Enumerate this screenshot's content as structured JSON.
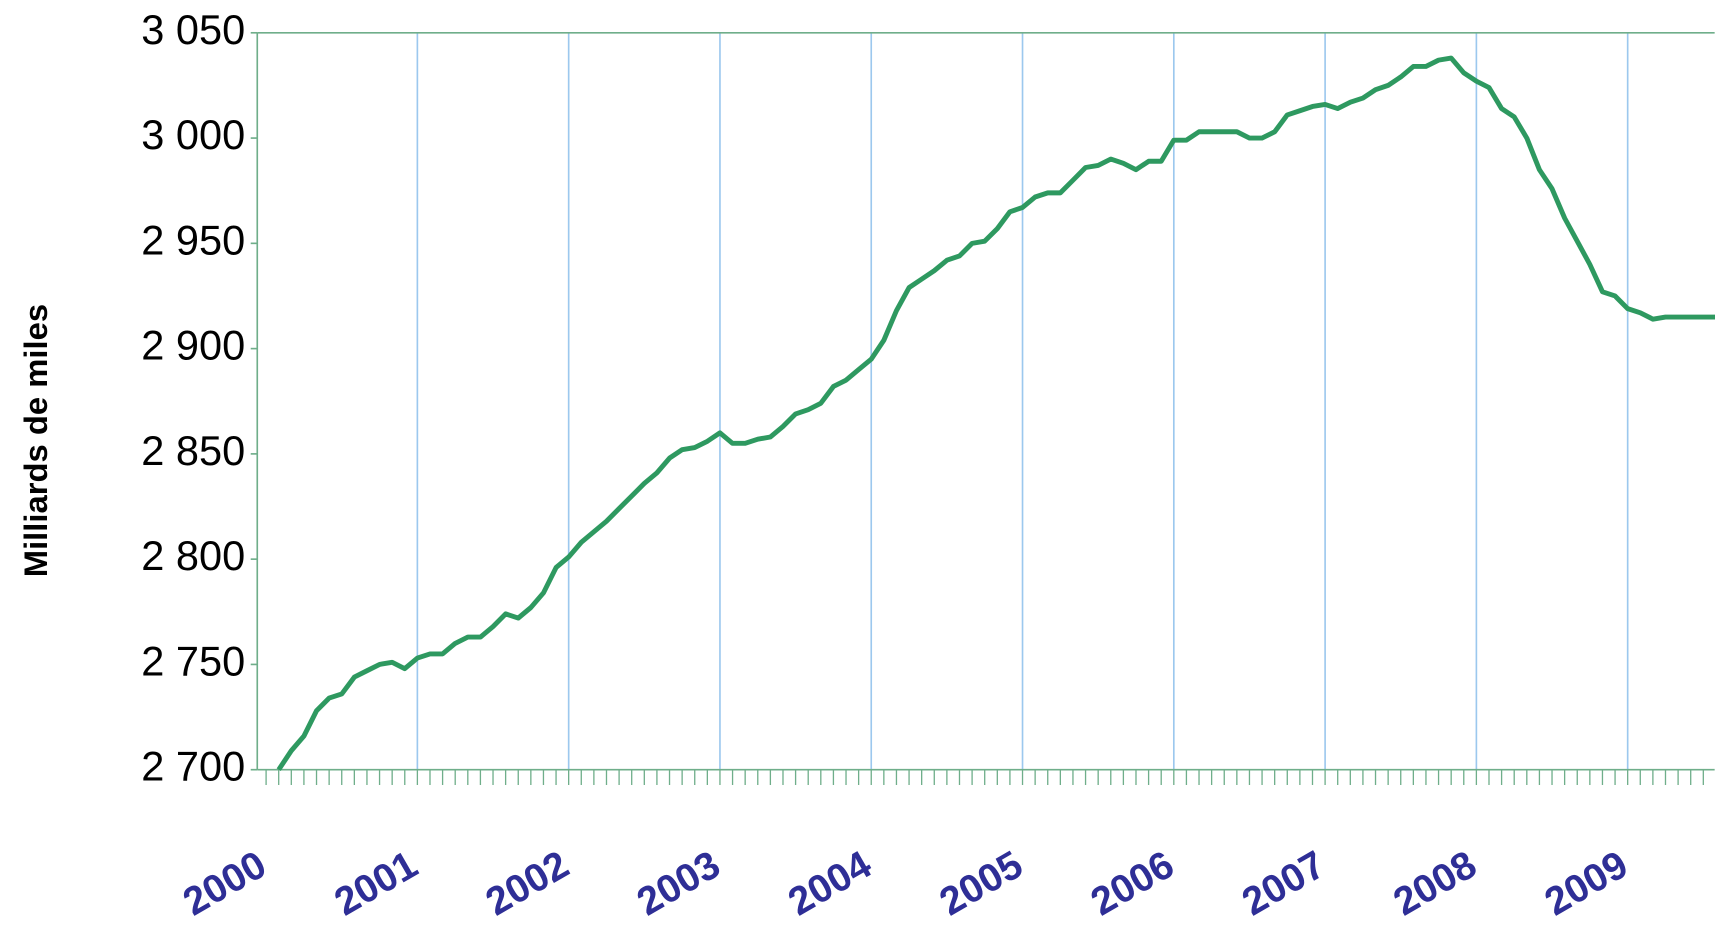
{
  "chart_data": {
    "type": "line",
    "y_label": "Milliards de miles",
    "categories": [
      "2000",
      null,
      null,
      null,
      null,
      null,
      null,
      null,
      null,
      null,
      null,
      null,
      "2001",
      null,
      null,
      null,
      null,
      null,
      null,
      null,
      null,
      null,
      null,
      null,
      "2002",
      null,
      null,
      null,
      null,
      null,
      null,
      null,
      null,
      null,
      null,
      null,
      "2003",
      null,
      null,
      null,
      null,
      null,
      null,
      null,
      null,
      null,
      null,
      null,
      "2004",
      null,
      null,
      null,
      null,
      null,
      null,
      null,
      null,
      null,
      null,
      null,
      "2005",
      null,
      null,
      null,
      null,
      null,
      null,
      null,
      null,
      null,
      null,
      null,
      "2006",
      null,
      null,
      null,
      null,
      null,
      null,
      null,
      null,
      null,
      null,
      null,
      "2007",
      null,
      null,
      null,
      null,
      null,
      null,
      null,
      null,
      null,
      null,
      null,
      "2008",
      null,
      null,
      null,
      null,
      null,
      null,
      null,
      null,
      null,
      null,
      null,
      "2009",
      null,
      null,
      null,
      null,
      null,
      null,
      null
    ],
    "series": [
      {
        "color": "#2e9960",
        "values": [
          null,
          2700,
          2709,
          2716,
          2728,
          2734,
          2736,
          2744,
          2747,
          2750,
          2751,
          2748,
          2753,
          2755,
          2755,
          2760,
          2763,
          2763,
          2768,
          2774,
          2772,
          2777,
          2784,
          2796,
          2801,
          2808,
          2813,
          2818,
          2824,
          2830,
          2836,
          2841,
          2848,
          2852,
          2853,
          2856,
          2860,
          2855,
          2855,
          2857,
          2858,
          2863,
          2869,
          2871,
          2874,
          2882,
          2885,
          2890,
          2895,
          2904,
          2918,
          2929,
          2933,
          2937,
          2942,
          2944,
          2950,
          2951,
          2957,
          2965,
          2967,
          2972,
          2974,
          2974,
          2980,
          2986,
          2987,
          2990,
          2988,
          2985,
          2989,
          2989,
          2999,
          2999,
          3003,
          3003,
          3003,
          3003,
          3000,
          3000,
          3003,
          3011,
          3013,
          3015,
          3016,
          3014,
          3017,
          3019,
          3023,
          3025,
          3029,
          3034,
          3034,
          3037,
          3038,
          3031,
          3027,
          3024,
          3014,
          3010,
          3000,
          2985,
          2976,
          2962,
          2951,
          2940,
          2927,
          2925,
          2919,
          2917,
          2914,
          2915,
          2915,
          2915,
          2915,
          2915
        ]
      }
    ],
    "ylim": [
      2700,
      3050
    ],
    "yticks": [
      {
        "value": 2700,
        "label": "2 700"
      },
      {
        "value": 2750,
        "label": "2 750"
      },
      {
        "value": 2800,
        "label": "2 800"
      },
      {
        "value": 2850,
        "label": "2 850"
      },
      {
        "value": 2900,
        "label": "2 900"
      },
      {
        "value": 2950,
        "label": "2 950"
      },
      {
        "value": 3000,
        "label": "3 000"
      },
      {
        "value": 3050,
        "label": "3 050"
      }
    ],
    "grid": true
  }
}
